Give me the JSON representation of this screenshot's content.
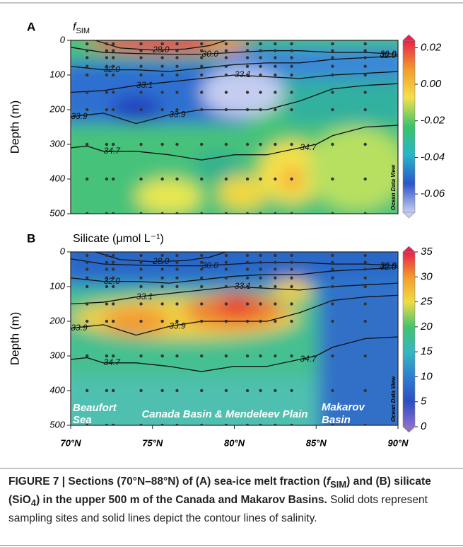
{
  "chart_data": [
    {
      "type": "contour",
      "panel_label": "A",
      "title": "f",
      "title_sub": "SIM",
      "ylabel": "Depth (m)",
      "xlim": [
        70,
        90
      ],
      "ylim": [
        0,
        500
      ],
      "yticks": [
        0,
        100,
        200,
        300,
        400,
        500
      ],
      "side_text": "Ocean Data View",
      "colorbar": {
        "lim": [
          -0.07,
          0.024
        ],
        "ticks": [
          0.02,
          {
            "value": 0,
            "label": "0.00"
          },
          -0.02,
          -0.04,
          -0.06
        ],
        "colors": [
          "#c7cdf0",
          "#2b55c9",
          "#26b7c9",
          "#3cc36a",
          "#f3e14a",
          "#f39a2d",
          "#e8204a"
        ]
      },
      "stations": [
        71,
        72.2,
        72.6,
        74.3,
        75.6,
        76.5,
        78,
        79.5,
        80.8,
        81.6,
        82.5,
        83.5,
        86,
        88
      ],
      "sample_depths": [
        10,
        30,
        50,
        75,
        100,
        150,
        200,
        300,
        400,
        500
      ],
      "contours": [
        {
          "label": "28.0",
          "x": [
            71.5,
            73,
            75,
            77,
            78.5,
            79.5
          ],
          "y": [
            0,
            22,
            28,
            25,
            15,
            0
          ]
        },
        {
          "label": "30.0",
          "x": [
            70,
            72,
            74,
            76,
            78,
            80,
            82,
            84,
            86,
            88,
            90
          ],
          "y": [
            20,
            35,
            38,
            40,
            40,
            35,
            30,
            30,
            35,
            35,
            40
          ]
        },
        {
          "label": "32.0",
          "x": [
            70,
            72,
            74,
            76,
            78,
            80,
            82,
            84,
            86,
            88,
            90
          ],
          "y": [
            75,
            85,
            85,
            90,
            80,
            70,
            65,
            65,
            55,
            50,
            45
          ]
        },
        {
          "label": "33.1",
          "x": [
            70,
            72,
            74,
            76,
            78,
            80,
            82,
            84,
            86,
            88,
            90
          ],
          "y": [
            150,
            145,
            130,
            120,
            110,
            100,
            105,
            110,
            100,
            95,
            90
          ]
        },
        {
          "label": "33.9",
          "x": [
            70,
            72,
            74,
            76,
            78,
            80,
            82,
            84,
            86,
            88,
            90
          ],
          "y": [
            220,
            210,
            240,
            215,
            200,
            200,
            200,
            175,
            140,
            130,
            125
          ]
        },
        {
          "label": "34.7",
          "x": [
            70,
            71,
            72,
            74,
            76,
            78,
            80,
            82,
            84,
            85,
            86,
            88,
            90
          ],
          "y": [
            310,
            305,
            320,
            320,
            330,
            345,
            330,
            330,
            310,
            300,
            275,
            250,
            245
          ]
        }
      ]
    },
    {
      "type": "contour",
      "panel_label": "B",
      "title": "Silicate (μmol L⁻¹)",
      "ylabel": "Depth (m)",
      "xlim": [
        70,
        90
      ],
      "ylim": [
        0,
        500
      ],
      "yticks": [
        0,
        100,
        200,
        300,
        400,
        500
      ],
      "xticks": [
        {
          "value": 70,
          "label": "70°N"
        },
        {
          "value": 75,
          "label": "75°N"
        },
        {
          "value": 80,
          "label": "80°N"
        },
        {
          "value": 85,
          "label": "85°N"
        },
        {
          "value": 90,
          "label": "90°N"
        }
      ],
      "side_text": "Ocean Data View",
      "colorbar": {
        "lim": [
          0,
          35
        ],
        "ticks": [
          0,
          5,
          10,
          15,
          20,
          25,
          30,
          35
        ],
        "colors": [
          "#8a6fd0",
          "#2b4fc0",
          "#2f7fd0",
          "#35b7c0",
          "#45c36e",
          "#f0dc45",
          "#f39a2d",
          "#e8204a"
        ]
      },
      "annotations": [
        "Beaufort",
        "Sea",
        "Canada Basin & Mendeleev Plain",
        "Makarov",
        "Basin"
      ],
      "stations": [
        71,
        72.2,
        72.6,
        74.3,
        75.6,
        76.5,
        78,
        79.5,
        80.8,
        81.6,
        82.5,
        83.5,
        86,
        88
      ],
      "sample_depths": [
        10,
        30,
        50,
        75,
        100,
        150,
        200,
        300,
        400,
        500
      ],
      "contours": [
        {
          "label": "28.0",
          "x": [
            71.5,
            73,
            75,
            77,
            78.5,
            79.5
          ],
          "y": [
            0,
            22,
            28,
            25,
            15,
            0
          ]
        },
        {
          "label": "30.0",
          "x": [
            70,
            72,
            74,
            76,
            78,
            80,
            82,
            84,
            86,
            88,
            90
          ],
          "y": [
            20,
            35,
            38,
            40,
            40,
            35,
            30,
            30,
            35,
            35,
            40
          ]
        },
        {
          "label": "32.0",
          "x": [
            70,
            72,
            74,
            76,
            78,
            80,
            82,
            84,
            86,
            88,
            90
          ],
          "y": [
            75,
            85,
            85,
            90,
            80,
            70,
            65,
            65,
            55,
            50,
            45
          ]
        },
        {
          "label": "33.1",
          "x": [
            70,
            72,
            74,
            76,
            78,
            80,
            82,
            84,
            86,
            88,
            90
          ],
          "y": [
            150,
            145,
            130,
            120,
            110,
            100,
            105,
            110,
            100,
            95,
            90
          ]
        },
        {
          "label": "33.9",
          "x": [
            70,
            72,
            74,
            76,
            78,
            80,
            82,
            84,
            86,
            88,
            90
          ],
          "y": [
            220,
            210,
            240,
            215,
            200,
            200,
            200,
            175,
            140,
            130,
            125
          ]
        },
        {
          "label": "34.7",
          "x": [
            70,
            71,
            72,
            74,
            76,
            78,
            80,
            82,
            84,
            85,
            86,
            88,
            90
          ],
          "y": [
            310,
            305,
            320,
            320,
            330,
            345,
            330,
            330,
            310,
            300,
            275,
            250,
            245
          ]
        }
      ]
    }
  ],
  "caption": {
    "bold": [
      "FIGURE 7 | Sections (70°N–88°N) of (A) sea-ice melt fraction (",
      "f",
      "SIM",
      ") and (B) silicate (SiO",
      "4",
      ") in the upper 500 m of the Canada and Makarov Basins."
    ],
    "normal": "Solid dots represent sampling sites and solid lines depict the contour lines of salinity."
  }
}
